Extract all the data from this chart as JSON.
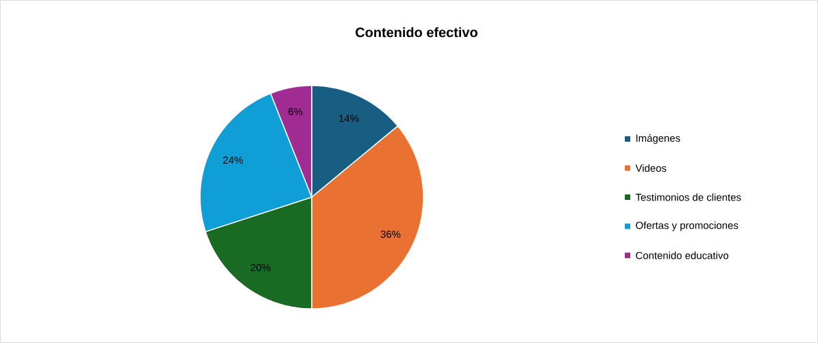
{
  "chart_data": {
    "type": "pie",
    "title": "Contenido efectivo",
    "categories": [
      "Imágenes",
      "Videos",
      "Testimonios de clientes",
      "Ofertas y promociones",
      "Contenido educativo"
    ],
    "values": [
      14,
      36,
      20,
      24,
      6
    ],
    "value_labels": [
      "14%",
      "36%",
      "20%",
      "24%",
      "6%"
    ],
    "colors": [
      "#175e82",
      "#e97132",
      "#196b24",
      "#0f9ed5",
      "#a02b93"
    ],
    "legend": "right"
  }
}
